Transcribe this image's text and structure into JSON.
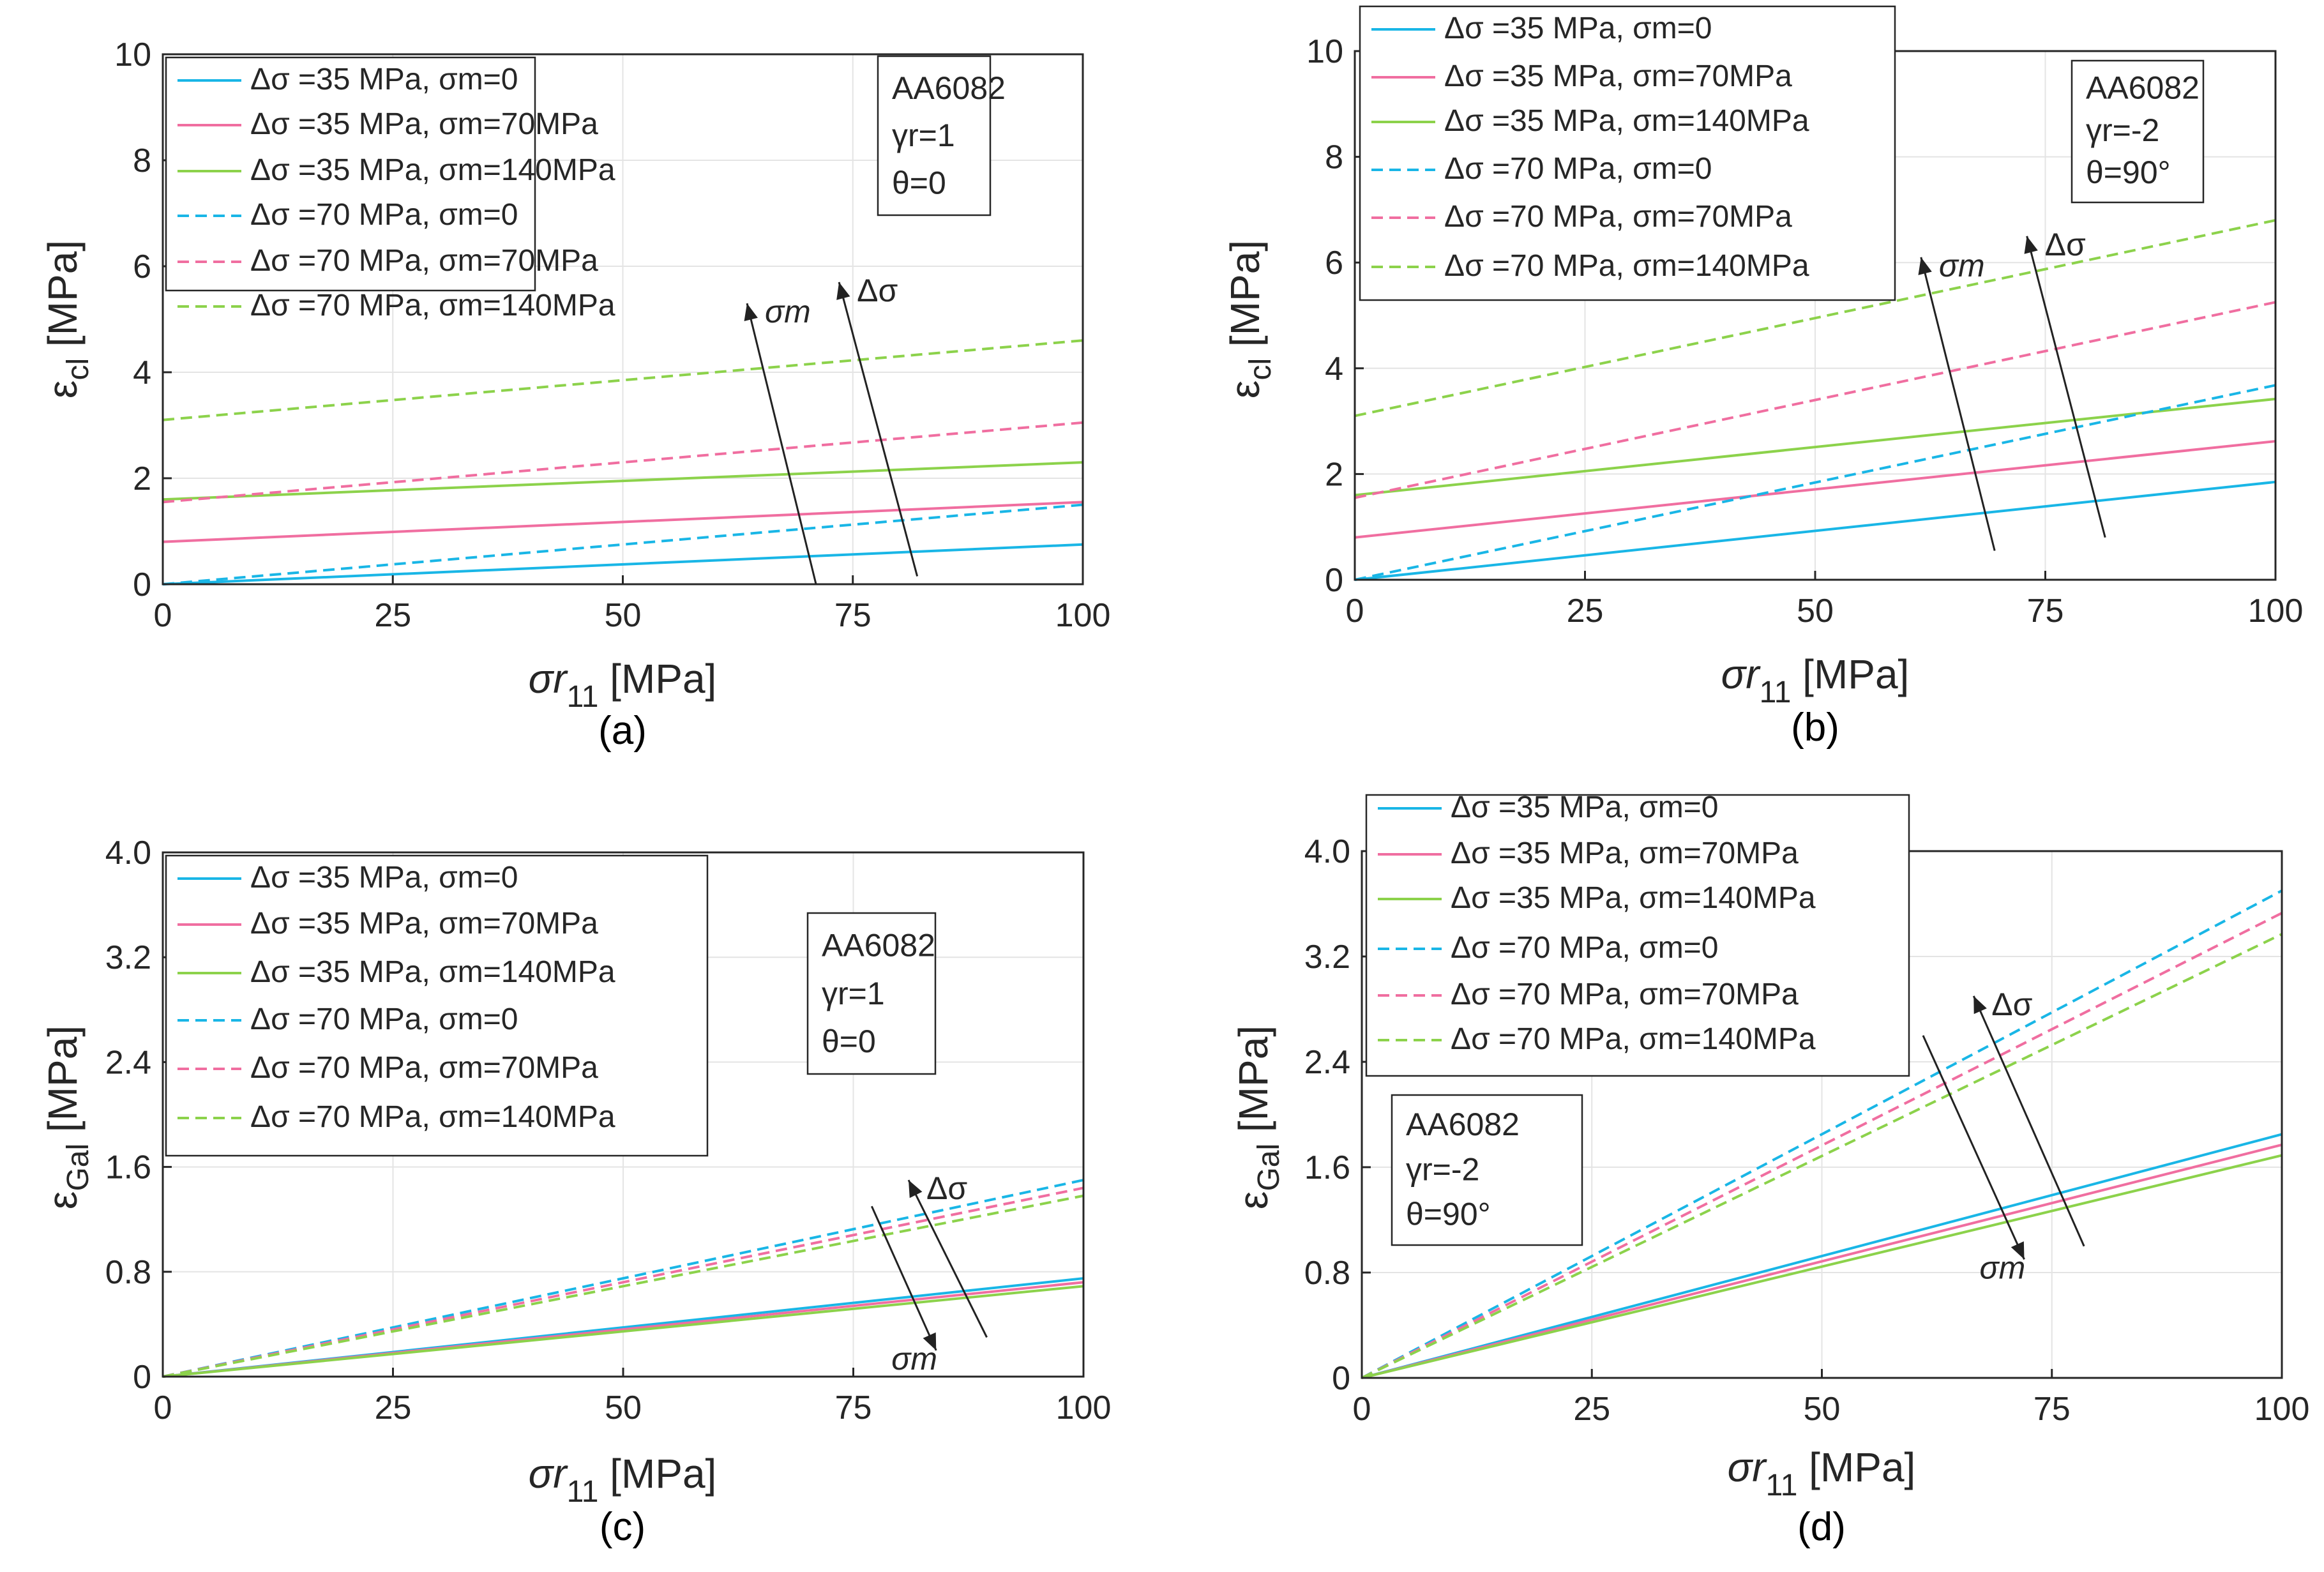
{
  "colors": {
    "sm0": "#19b6e6",
    "sm70": "#f06ea0",
    "sm140": "#8cd24b",
    "grid": "#e4e4e4",
    "axis": "#262626"
  },
  "chart_data": [
    {
      "type": "line",
      "panel": "(a)",
      "ylabel_main": "ε",
      "ylabel_sub": "cl",
      "ylabel_unit": "[MPa]",
      "xlabel_main": "σr",
      "xlabel_sub": "11",
      "xlabel_unit": "[MPa]",
      "xlim": [
        0,
        100
      ],
      "ylim": [
        0,
        10
      ],
      "xticks": [
        0,
        25,
        50,
        75,
        100
      ],
      "yticks": [
        0,
        2,
        4,
        6,
        8,
        10
      ],
      "ytick_labels": [
        "0",
        "2",
        "4",
        "6",
        "8",
        "10"
      ],
      "legend_position": "top-left",
      "annotation": [
        "AA6082",
        "γr=1",
        "θ=0"
      ],
      "annotation_position": "top-right",
      "series": [
        {
          "name": "Δσ =35 MPa, σm=0",
          "style": "solid",
          "color_key": "sm0",
          "x": [
            0,
            100
          ],
          "y": [
            0,
            0.75
          ]
        },
        {
          "name": "Δσ =35 MPa, σm=70MPa",
          "style": "solid",
          "color_key": "sm70",
          "x": [
            0,
            100
          ],
          "y": [
            0.8,
            1.55
          ]
        },
        {
          "name": "Δσ =35 MPa, σm=140MPa",
          "style": "solid",
          "color_key": "sm140",
          "x": [
            0,
            100
          ],
          "y": [
            1.6,
            2.3
          ]
        },
        {
          "name": "Δσ =70 MPa, σm=0",
          "style": "dashed",
          "color_key": "sm0",
          "x": [
            0,
            100
          ],
          "y": [
            0,
            1.5
          ]
        },
        {
          "name": "Δσ =70 MPa, σm=70MPa",
          "style": "dashed",
          "color_key": "sm70",
          "x": [
            0,
            100
          ],
          "y": [
            1.55,
            3.05
          ]
        },
        {
          "name": "Δσ =70 MPa, σm=140MPa",
          "style": "dashed",
          "color_key": "sm140",
          "x": [
            0,
            100
          ],
          "y": [
            3.1,
            4.6
          ]
        }
      ],
      "arrows": [
        {
          "label": "σm",
          "from": [
            71,
            0
          ],
          "to": [
            63.5,
            5.3
          ]
        },
        {
          "label": "Δσ",
          "from": [
            82,
            0.15
          ],
          "to": [
            73.5,
            5.7
          ]
        }
      ]
    },
    {
      "type": "line",
      "panel": "(b)",
      "ylabel_main": "ε",
      "ylabel_sub": "cl",
      "ylabel_unit": "[MPa]",
      "xlabel_main": "σr",
      "xlabel_sub": "11",
      "xlabel_unit": "[MPa]",
      "xlim": [
        0,
        100
      ],
      "ylim": [
        0,
        10
      ],
      "xticks": [
        0,
        25,
        50,
        75,
        100
      ],
      "yticks": [
        0,
        2,
        4,
        6,
        8,
        10
      ],
      "ytick_labels": [
        "0",
        "2",
        "4",
        "6",
        "8",
        "10"
      ],
      "legend_position": "top-left",
      "annotation": [
        "AA6082",
        "γr=-2",
        "θ=90°"
      ],
      "annotation_position": "top-right",
      "series": [
        {
          "name": "Δσ =35 MPa, σm=0",
          "style": "solid",
          "color_key": "sm0",
          "x": [
            0,
            100
          ],
          "y": [
            0,
            1.85
          ]
        },
        {
          "name": "Δσ =35 MPa, σm=70MPa",
          "style": "solid",
          "color_key": "sm70",
          "x": [
            0,
            100
          ],
          "y": [
            0.8,
            2.62
          ]
        },
        {
          "name": "Δσ =35 MPa, σm=140MPa",
          "style": "solid",
          "color_key": "sm140",
          "x": [
            0,
            100
          ],
          "y": [
            1.6,
            3.42
          ]
        },
        {
          "name": "Δσ =70 MPa, σm=0",
          "style": "dashed",
          "color_key": "sm0",
          "x": [
            0,
            100
          ],
          "y": [
            0,
            3.68
          ]
        },
        {
          "name": "Δσ =70 MPa, σm=70MPa",
          "style": "dashed",
          "color_key": "sm70",
          "x": [
            0,
            100
          ],
          "y": [
            1.55,
            5.25
          ]
        },
        {
          "name": "Δσ =70 MPa, σm=140MPa",
          "style": "dashed",
          "color_key": "sm140",
          "x": [
            0,
            100
          ],
          "y": [
            3.1,
            6.8
          ]
        }
      ],
      "arrows": [
        {
          "label": "σm",
          "from": [
            69.5,
            0.55
          ],
          "to": [
            61.5,
            6.1
          ]
        },
        {
          "label": "Δσ",
          "from": [
            81.5,
            0.8
          ],
          "to": [
            73,
            6.5
          ]
        }
      ]
    },
    {
      "type": "line",
      "panel": "(c)",
      "ylabel_main": "ε",
      "ylabel_sub": "Gal",
      "ylabel_unit": "[MPa]",
      "xlabel_main": "σr",
      "xlabel_sub": "11",
      "xlabel_unit": "[MPa]",
      "xlim": [
        0,
        100
      ],
      "ylim": [
        0,
        4
      ],
      "xticks": [
        0,
        25,
        50,
        75,
        100
      ],
      "yticks": [
        0,
        0.8,
        1.6,
        2.4,
        3.2,
        4.0
      ],
      "ytick_labels": [
        "0",
        "0.8",
        "1.6",
        "2.4",
        "3.2",
        "4.0"
      ],
      "legend_position": "top-left",
      "annotation": [
        "AA6082",
        "γr=1",
        "θ=0"
      ],
      "annotation_position": "top-right",
      "series": [
        {
          "name": "Δσ =35 MPa, σm=0",
          "style": "solid",
          "color_key": "sm0",
          "x": [
            0,
            100
          ],
          "y": [
            0,
            0.75
          ]
        },
        {
          "name": "Δσ =35 MPa, σm=70MPa",
          "style": "solid",
          "color_key": "sm70",
          "x": [
            0,
            100
          ],
          "y": [
            0,
            0.72
          ]
        },
        {
          "name": "Δσ =35 MPa, σm=140MPa",
          "style": "solid",
          "color_key": "sm140",
          "x": [
            0,
            100
          ],
          "y": [
            0,
            0.69
          ]
        },
        {
          "name": "Δσ =70 MPa, σm=0",
          "style": "dashed",
          "color_key": "sm0",
          "x": [
            0,
            100
          ],
          "y": [
            0,
            1.5
          ]
        },
        {
          "name": "Δσ =70 MPa, σm=70MPa",
          "style": "dashed",
          "color_key": "sm70",
          "x": [
            0,
            100
          ],
          "y": [
            0,
            1.44
          ]
        },
        {
          "name": "Δσ =70 MPa, σm=140MPa",
          "style": "dashed",
          "color_key": "sm140",
          "x": [
            0,
            100
          ],
          "y": [
            0,
            1.38
          ]
        }
      ],
      "arrows": [
        {
          "label": "Δσ",
          "from": [
            89.5,
            0.3
          ],
          "to": [
            81,
            1.5
          ]
        },
        {
          "label": "σm",
          "from": [
            77,
            1.3
          ],
          "to": [
            84,
            0.2
          ]
        }
      ]
    },
    {
      "type": "line",
      "panel": "(d)",
      "ylabel_main": "ε",
      "ylabel_sub": "Gal",
      "ylabel_unit": "[MPa]",
      "xlabel_main": "σr",
      "xlabel_sub": "11",
      "xlabel_unit": "[MPa]",
      "xlim": [
        0,
        100
      ],
      "ylim": [
        0,
        4
      ],
      "xticks": [
        0,
        25,
        50,
        75,
        100
      ],
      "yticks": [
        0,
        0.8,
        1.6,
        2.4,
        3.2,
        4.0
      ],
      "ytick_labels": [
        "0",
        "0.8",
        "1.6",
        "2.4",
        "3.2",
        "4.0"
      ],
      "legend_position": "top-left",
      "annotation": [
        "AA6082",
        "γr=-2",
        "θ=90°"
      ],
      "annotation_position": "middle-left",
      "series": [
        {
          "name": "Δσ =35 MPa, σm=0",
          "style": "solid",
          "color_key": "sm0",
          "x": [
            0,
            100
          ],
          "y": [
            0,
            1.85
          ]
        },
        {
          "name": "Δσ =35 MPa, σm=70MPa",
          "style": "solid",
          "color_key": "sm70",
          "x": [
            0,
            100
          ],
          "y": [
            0,
            1.77
          ]
        },
        {
          "name": "Δσ =35 MPa, σm=140MPa",
          "style": "solid",
          "color_key": "sm140",
          "x": [
            0,
            100
          ],
          "y": [
            0,
            1.69
          ]
        },
        {
          "name": "Δσ =70 MPa, σm=0",
          "style": "dashed",
          "color_key": "sm0",
          "x": [
            0,
            100
          ],
          "y": [
            0,
            3.7
          ]
        },
        {
          "name": "Δσ =70 MPa, σm=70MPa",
          "style": "dashed",
          "color_key": "sm70",
          "x": [
            0,
            100
          ],
          "y": [
            0,
            3.53
          ]
        },
        {
          "name": "Δσ =70 MPa, σm=140MPa",
          "style": "dashed",
          "color_key": "sm140",
          "x": [
            0,
            100
          ],
          "y": [
            0,
            3.37
          ]
        }
      ],
      "arrows": [
        {
          "label": "Δσ",
          "from": [
            78.5,
            1.0
          ],
          "to": [
            66.5,
            2.9
          ]
        },
        {
          "label": "σm",
          "from": [
            61,
            2.6
          ],
          "to": [
            72,
            0.9
          ]
        }
      ]
    }
  ]
}
